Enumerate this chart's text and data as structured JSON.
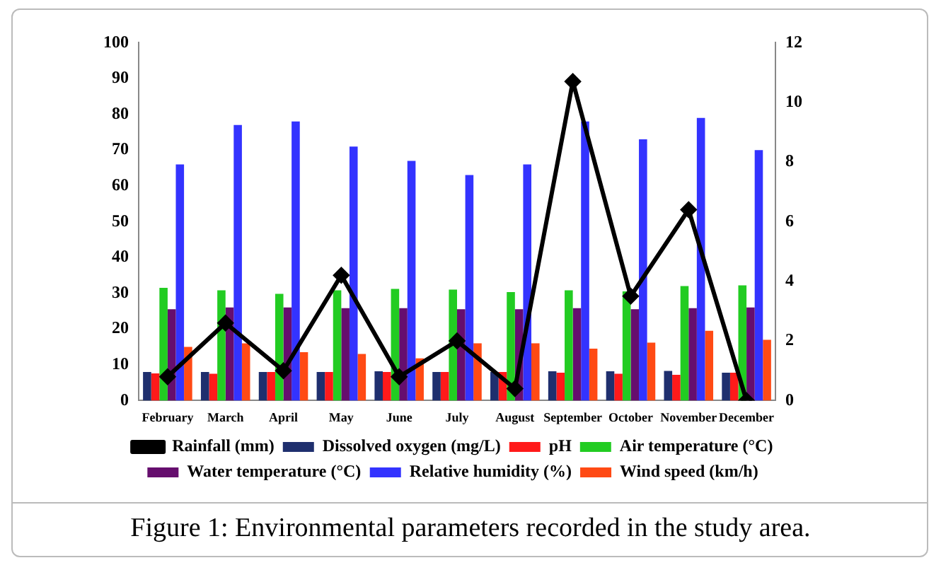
{
  "chart_data": {
    "type": "bar",
    "annotations": [
      "Figure 1: Environmental parameters recorded in the study area."
    ],
    "categories": [
      "February",
      "March",
      "April",
      "May",
      "June",
      "July",
      "August",
      "September",
      "October",
      "November",
      "December"
    ],
    "series": [
      {
        "name": "Dissolved oxygen (mg/L)",
        "color": "#1f2f6e",
        "values": [
          8,
          8,
          8,
          8,
          8.2,
          8,
          8,
          8.2,
          8.2,
          8.3,
          7.8
        ]
      },
      {
        "name": "pH",
        "color": "#ff1a1a",
        "values": [
          7.6,
          7.5,
          8,
          8,
          8,
          8,
          8,
          7.8,
          7.5,
          7.2,
          7.8
        ]
      },
      {
        "name": "Air temperature (°C)",
        "color": "#22cc22",
        "values": [
          31.5,
          30.8,
          29.8,
          30.8,
          31.2,
          31,
          30.3,
          30.8,
          30.5,
          32,
          32.2
        ]
      },
      {
        "name": "Water temperature (°C)",
        "color": "#660e6e",
        "values": [
          25.5,
          26,
          26,
          25.8,
          25.8,
          25.5,
          25.5,
          25.8,
          25.5,
          25.8,
          26
        ]
      },
      {
        "name": "Relative humidity (%)",
        "color": "#3333ff",
        "values": [
          66,
          77,
          78,
          71,
          67,
          63,
          66,
          78,
          73,
          79,
          70
        ]
      },
      {
        "name": "Wind speed (km/h)",
        "color": "#ff4a14",
        "values": [
          15,
          16,
          13.5,
          13,
          11.8,
          16,
          16,
          14.5,
          16.2,
          19.5,
          17
        ]
      },
      {
        "name": "Rainfall (mm)",
        "type": "line",
        "axis": "y2",
        "color": "#000000",
        "values": [
          0.8,
          2.6,
          1,
          4.2,
          0.8,
          2,
          0.4,
          10.7,
          3.5,
          6.4,
          0
        ]
      }
    ],
    "ylim": [
      0,
      100
    ],
    "yticks": [
      0,
      10,
      20,
      30,
      40,
      50,
      60,
      70,
      80,
      90,
      100
    ],
    "y2lim": [
      0,
      12
    ],
    "y2ticks": [
      0,
      2,
      4,
      6,
      8,
      10,
      12
    ],
    "grid": false,
    "legend": "bottom",
    "marker": "diamond",
    "line_style": "solid"
  }
}
